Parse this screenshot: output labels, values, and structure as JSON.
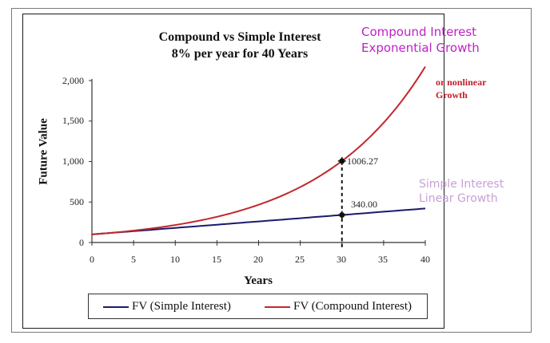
{
  "chart_data": {
    "type": "line",
    "title": "Compound vs Simple Interest",
    "subtitle": "8% per year for 40 Years",
    "xlabel": "Years",
    "ylabel": "Future Value",
    "xlim": [
      0,
      40
    ],
    "ylim": [
      0,
      2000
    ],
    "x_ticks": [
      "0",
      "5",
      "10",
      "15",
      "20",
      "25",
      "30",
      "35",
      "40"
    ],
    "y_ticks": [
      "0",
      "500",
      "1,000",
      "1,500",
      "2,000"
    ],
    "grid": false,
    "legend_position": "bottom",
    "x": [
      0,
      5,
      10,
      15,
      20,
      25,
      30,
      35,
      40
    ],
    "series": [
      {
        "name": "FV (Simple Interest)",
        "color": "#1a1a6e",
        "values": [
          100,
          140,
          180,
          220,
          260,
          300,
          340,
          380,
          420
        ]
      },
      {
        "name": "FV (Compound Interest)",
        "color": "#c0282d",
        "values": [
          100,
          146.93,
          215.89,
          317.22,
          466.1,
          684.85,
          1006.27,
          1478.53,
          2172.45
        ]
      }
    ],
    "annotations": [
      {
        "x": 30,
        "y": 1006.27,
        "text": "1006.27"
      },
      {
        "x": 30,
        "y": 340.0,
        "text": "340.00"
      },
      {
        "text": "Compound Interest Exponential Growth",
        "color": "#c020c8"
      },
      {
        "text": "or nonlinear Growth",
        "color": "#c0202a"
      },
      {
        "text": "Simple Interest Linear Growth",
        "color": "#c8a0d8"
      }
    ]
  },
  "labels": {
    "title_line1": "Compound vs Simple Interest",
    "title_line2": "8% per year for 40 Years",
    "ylabel": "Future Value",
    "xlabel": "Years",
    "point_compound": "1006.27",
    "point_simple": "340.00",
    "ann_compound_1": "Compound Interest",
    "ann_compound_2": "Exponential Growth",
    "ann_nonlinear_1": "or nonlinear",
    "ann_nonlinear_2": "Growth",
    "ann_simple_1": "Simple Interest",
    "ann_simple_2": "Linear Growth",
    "legend_simple": "FV (Simple Interest)",
    "legend_compound": "FV (Compound Interest)",
    "yticks": [
      "2,000",
      "1,500",
      "1,000",
      "500",
      "0"
    ],
    "xticks": [
      "0",
      "5",
      "10",
      "15",
      "20",
      "25",
      "30",
      "35",
      "40"
    ]
  },
  "colors": {
    "simple": "#1a1a6e",
    "compound": "#c0282d",
    "ann_compound": "#c020c8",
    "ann_nonlinear": "#c0202a",
    "ann_simple": "#c8a0d8"
  }
}
